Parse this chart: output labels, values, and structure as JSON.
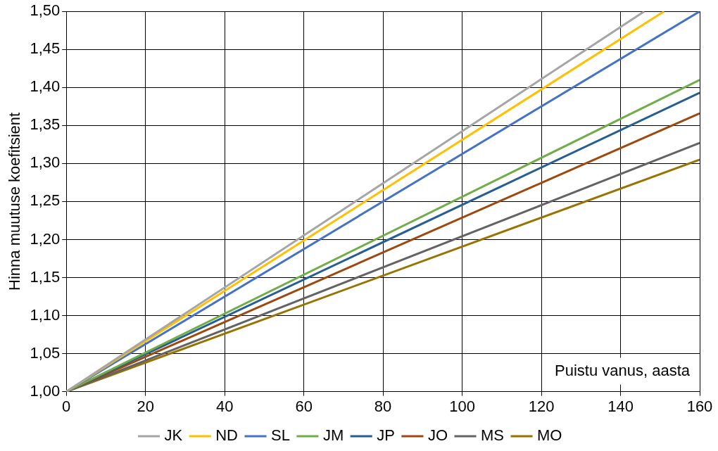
{
  "chart_data": {
    "type": "line",
    "xlabel": "Puistu vanus, aasta",
    "ylabel": "Hinna muutuse koefitsient",
    "xlim": [
      0,
      160
    ],
    "xticks": [
      0,
      20,
      40,
      60,
      80,
      100,
      120,
      140,
      160
    ],
    "ylim": [
      1,
      1.5
    ],
    "yticks": [
      {
        "value": 1,
        "label": "1,00"
      },
      {
        "value": 1.05,
        "label": "1,05"
      },
      {
        "value": 1.1,
        "label": "1,10"
      },
      {
        "value": 1.15,
        "label": "1,15"
      },
      {
        "value": 1.2,
        "label": "1,20"
      },
      {
        "value": 1.25,
        "label": "1,25"
      },
      {
        "value": 1.3,
        "label": "1,30"
      },
      {
        "value": 1.35,
        "label": "1,35"
      },
      {
        "value": 1.4,
        "label": "1,40"
      },
      {
        "value": 1.45,
        "label": "1,45"
      },
      {
        "value": 1.5,
        "label": "1,50"
      }
    ],
    "grid": true,
    "legend": "bottom",
    "marker": "none",
    "line_style": "solid",
    "series": [
      {
        "name": "JK",
        "color": "#a5a5a5",
        "x": [
          0,
          146
        ],
        "values": [
          1,
          1.5
        ]
      },
      {
        "name": "ND",
        "color": "#ffc000",
        "x": [
          0,
          151
        ],
        "values": [
          1,
          1.5
        ]
      },
      {
        "name": "SL",
        "color": "#4472c4",
        "x": [
          0,
          160
        ],
        "values": [
          1,
          1.5
        ]
      },
      {
        "name": "JM",
        "color": "#70ad47",
        "x": [
          0,
          160
        ],
        "values": [
          1,
          1.41
        ]
      },
      {
        "name": "JP",
        "color": "#255e91",
        "x": [
          0,
          160
        ],
        "values": [
          1,
          1.393
        ]
      },
      {
        "name": "JO",
        "color": "#9e480e",
        "x": [
          0,
          160
        ],
        "values": [
          1,
          1.366
        ]
      },
      {
        "name": "MS",
        "color": "#636363",
        "x": [
          0,
          160
        ],
        "values": [
          1,
          1.327
        ]
      },
      {
        "name": "MO",
        "color": "#997300",
        "x": [
          0,
          160
        ],
        "values": [
          1,
          1.305
        ]
      }
    ]
  }
}
